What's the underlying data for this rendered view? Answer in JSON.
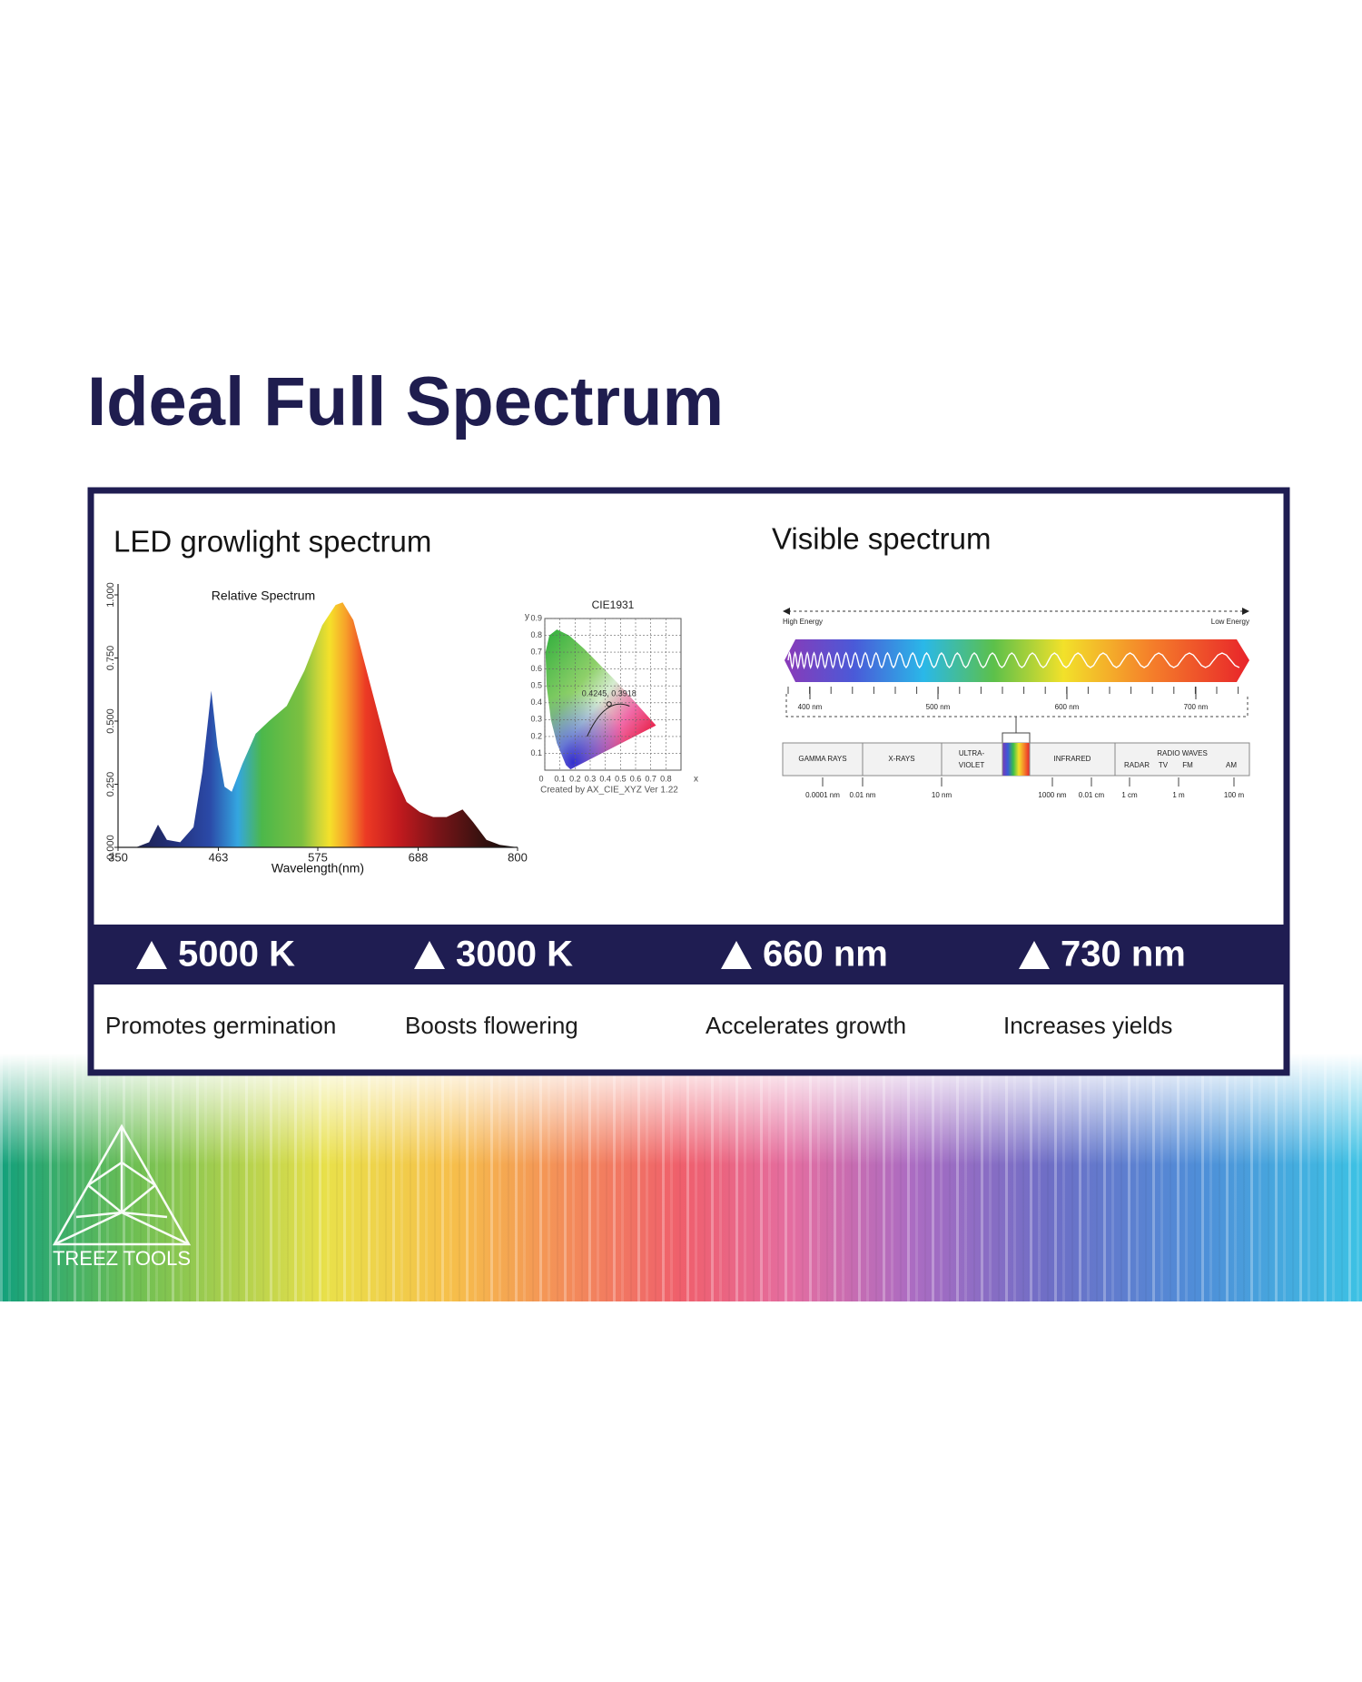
{
  "header": {
    "title": "Ideal Full Spectrum"
  },
  "led_spectrum": {
    "heading": "LED growlight spectrum",
    "chart": {
      "type": "area",
      "title": "Relative Spectrum",
      "x_label": "Wavelength(nm)",
      "x": [
        350,
        370,
        385,
        395,
        405,
        420,
        435,
        445,
        455,
        462,
        470,
        478,
        490,
        505,
        520,
        540,
        560,
        580,
        595,
        603,
        615,
        630,
        645,
        660,
        675,
        690,
        705,
        720,
        738,
        750,
        765,
        780,
        800
      ],
      "values": [
        0,
        0,
        0.02,
        0.09,
        0.03,
        0.02,
        0.08,
        0.3,
        0.62,
        0.4,
        0.24,
        0.22,
        0.33,
        0.45,
        0.5,
        0.56,
        0.7,
        0.88,
        0.96,
        0.97,
        0.9,
        0.7,
        0.5,
        0.3,
        0.18,
        0.14,
        0.12,
        0.12,
        0.15,
        0.1,
        0.03,
        0.01,
        0
      ],
      "xlim": [
        350,
        800
      ],
      "ylim": [
        0,
        1
      ],
      "xticks": [
        350,
        463,
        575,
        688,
        800
      ],
      "yticks": [
        {
          "value": 0,
          "label": "0.000"
        },
        {
          "value": 0.25,
          "label": "0.250"
        },
        {
          "value": 0.5,
          "label": "0.500"
        },
        {
          "value": 0.75,
          "label": "0.750"
        },
        {
          "value": 1,
          "label": "1.000"
        }
      ]
    }
  },
  "cie_chart": {
    "title": "CIE1931",
    "x_label": "x",
    "y_label": "y",
    "xlim": [
      0,
      0.9
    ],
    "ylim": [
      0,
      0.9
    ],
    "xticks": [
      0,
      0.1,
      0.2,
      0.3,
      0.4,
      0.5,
      0.6,
      0.7,
      0.8
    ],
    "yticks": [
      0.1,
      0.2,
      0.3,
      0.4,
      0.5,
      0.6,
      0.7,
      0.8,
      0.9
    ],
    "point": {
      "x": 0.4245,
      "y": 0.3918,
      "label": "0.4245, 0.3918"
    },
    "caption": "Created by AX_CIE_XYZ Ver 1.22"
  },
  "visible_spectrum": {
    "heading": "Visible spectrum",
    "high_energy": "High Energy",
    "low_energy": "Low Energy",
    "wavelength_labels": [
      "400 nm",
      "500 nm",
      "600 nm",
      "700 nm"
    ],
    "bands": [
      "GAMMA RAYS",
      "X-RAYS",
      "ULTRA-",
      "VIOLET",
      "INFRARED",
      "RADIO WAVES"
    ],
    "radio_subbands": [
      "RADAR",
      "TV",
      "FM",
      "AM"
    ],
    "scale_labels": [
      "0.0001 nm",
      "0.01 nm",
      "10 nm",
      "1000 nm",
      "0.01 cm",
      "1 cm",
      "1 m",
      "100 m"
    ]
  },
  "highlights": [
    {
      "value": "5000 K",
      "description": "Promotes germination"
    },
    {
      "value": "3000 K",
      "description": "Boosts flowering"
    },
    {
      "value": "660 nm",
      "description": "Accelerates growth"
    },
    {
      "value": "730 nm",
      "description": "Increases yields"
    }
  ],
  "logo": {
    "text": "TREEZ TOOLS"
  }
}
